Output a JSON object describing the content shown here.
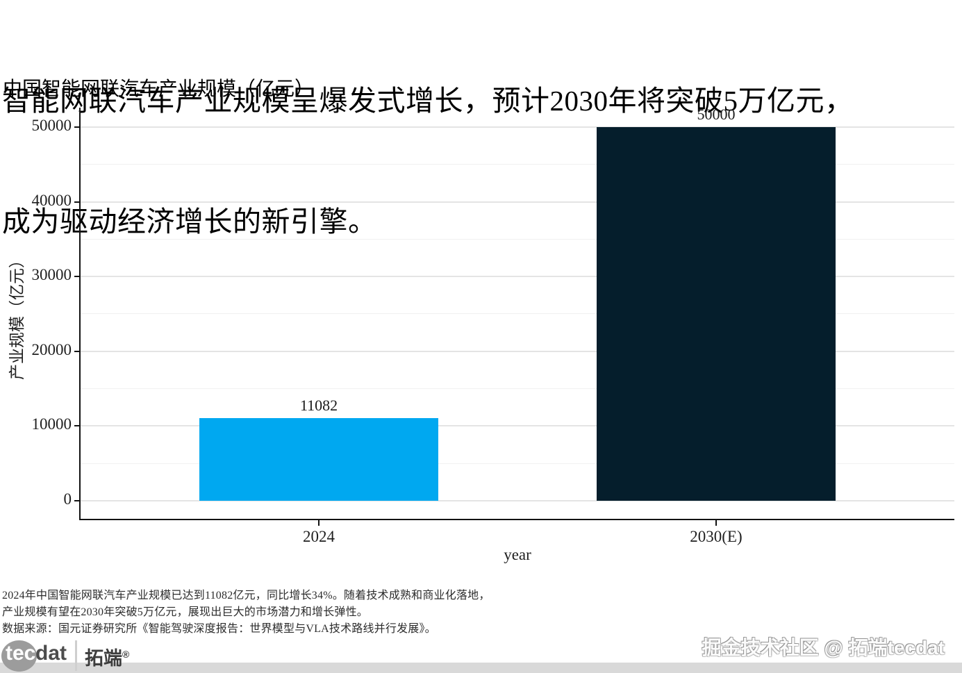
{
  "header": {
    "title_line1": "智能网联汽车产业规模呈爆发式增长，预计2030年将突破5万亿元，",
    "title_line2": "成为驱动经济增长的新引擎。",
    "subtitle": "中国智能网联汽车产业规模（亿元）"
  },
  "chart_data": {
    "type": "bar",
    "title": "中国智能网联汽车产业规模（亿元）",
    "categories": [
      "2024",
      "2030(E)"
    ],
    "values": [
      11082,
      50000
    ],
    "bar_labels": [
      "11082",
      "50000"
    ],
    "bar_colors": [
      "#00a8f0",
      "#051e2c"
    ],
    "xlabel": "year",
    "ylabel": "产业规模（亿元）",
    "ylim": [
      0,
      50000
    ],
    "yticks": [
      0,
      10000,
      20000,
      30000,
      40000,
      50000
    ],
    "grid": "horizontal major + minor, light gray",
    "legend": "none"
  },
  "footnote": {
    "line1": "2024年中国智能网联汽车产业规模已达到11082亿元，同比增长34%。随着技术成熟和商业化落地，",
    "line2": "产业规模有望在2030年突破5万亿元，展现出巨大的市场潜力和增长弹性。",
    "line3": "数据来源：国元证券研究所《智能驾驶深度报告：世界模型与VLA技术路线并行发展》。"
  },
  "branding": {
    "logo_tec": "tec",
    "logo_dat": "dat",
    "logo_cn": "拓端",
    "logo_reg": "®",
    "watermark": "掘金技术社区 @ 拓端tecdat"
  },
  "colors": {
    "bar_2024": "#00a8f0",
    "bar_2030": "#051e2c",
    "gridline_major": "#e4e4e4",
    "gridline_minor": "#f1f1f1",
    "axis": "#121212",
    "bottom_strip": "#d9d9d9"
  }
}
